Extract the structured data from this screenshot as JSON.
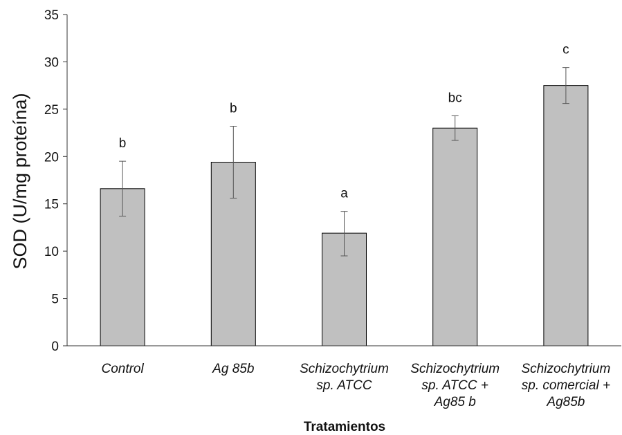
{
  "chart_data": {
    "type": "bar",
    "xlabel": "Tratamientos",
    "ylabel": "SOD (U/mg proteína)",
    "ylim": [
      0,
      35
    ],
    "yticks": [
      0,
      5,
      10,
      15,
      20,
      25,
      30,
      35
    ],
    "grid": false,
    "bar_color": "#c0c0c0",
    "categories": [
      [
        "Control"
      ],
      [
        "Ag 85b"
      ],
      [
        "Schizochytrium",
        "sp. ATCC"
      ],
      [
        "Schizochytrium",
        "sp. ATCC +",
        "Ag85 b"
      ],
      [
        "Schizochytrium",
        "sp. comercial +",
        "Ag85b"
      ]
    ],
    "values": [
      16.6,
      19.4,
      11.9,
      23.0,
      27.5
    ],
    "error_low": [
      13.7,
      15.6,
      9.5,
      21.7,
      25.6
    ],
    "error_high": [
      19.5,
      23.2,
      14.2,
      24.3,
      29.4
    ],
    "significance": [
      "b",
      "b",
      "a",
      "bc",
      "c"
    ]
  }
}
